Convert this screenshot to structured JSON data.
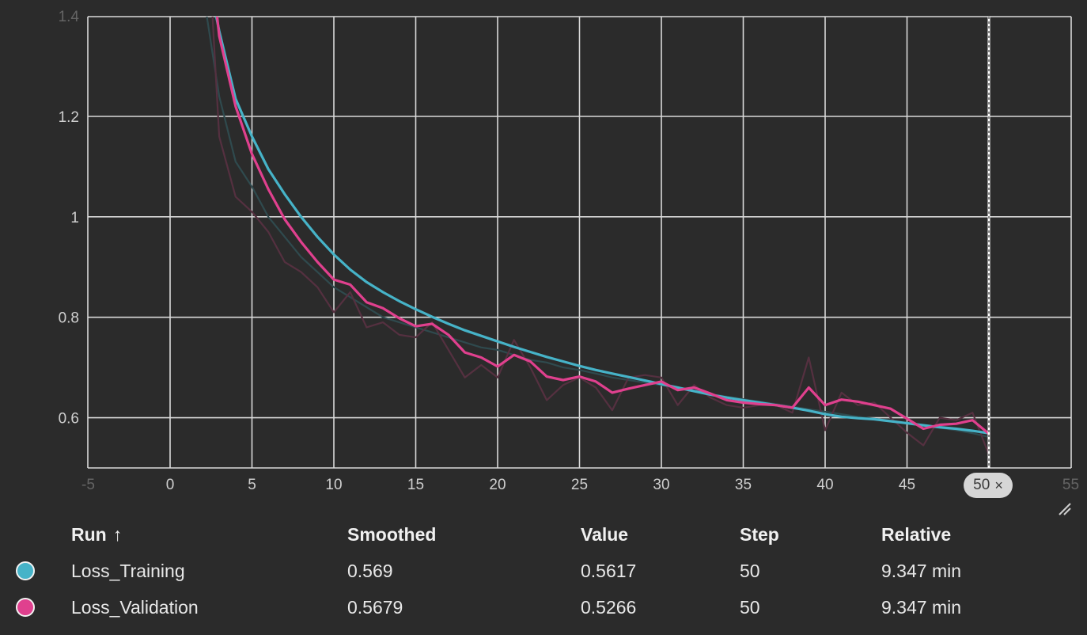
{
  "chart_data": {
    "type": "line",
    "x_ticks": [
      "-5",
      "0",
      "5",
      "10",
      "15",
      "20",
      "25",
      "30",
      "35",
      "40",
      "45",
      "50",
      "55"
    ],
    "y_ticks": [
      "0.6",
      "0.8",
      "1",
      "1.2",
      "1.4"
    ],
    "xlim": [
      -5,
      55
    ],
    "ylim": [
      0.5,
      1.4
    ],
    "grid": true,
    "series": [
      {
        "name": "Loss_Training",
        "color": "#46b3c8",
        "raw_color": "#2f4a4e",
        "raw": [
          [
            2,
            1.45
          ],
          [
            3,
            1.24
          ],
          [
            4,
            1.11
          ],
          [
            5,
            1.06
          ],
          [
            6,
            1.0
          ],
          [
            7,
            0.96
          ],
          [
            8,
            0.92
          ],
          [
            9,
            0.89
          ],
          [
            10,
            0.86
          ],
          [
            11,
            0.84
          ],
          [
            12,
            0.82
          ],
          [
            13,
            0.8
          ],
          [
            14,
            0.79
          ],
          [
            15,
            0.78
          ],
          [
            16,
            0.77
          ],
          [
            17,
            0.76
          ],
          [
            18,
            0.75
          ],
          [
            19,
            0.74
          ],
          [
            20,
            0.735
          ],
          [
            21,
            0.725
          ],
          [
            22,
            0.715
          ],
          [
            23,
            0.71
          ],
          [
            24,
            0.7
          ],
          [
            25,
            0.695
          ],
          [
            26,
            0.688
          ],
          [
            27,
            0.68
          ],
          [
            28,
            0.675
          ],
          [
            29,
            0.67
          ],
          [
            30,
            0.665
          ],
          [
            31,
            0.658
          ],
          [
            32,
            0.653
          ],
          [
            33,
            0.647
          ],
          [
            34,
            0.642
          ],
          [
            35,
            0.637
          ],
          [
            36,
            0.632
          ],
          [
            37,
            0.627
          ],
          [
            38,
            0.622
          ],
          [
            39,
            0.617
          ],
          [
            40,
            0.612
          ],
          [
            41,
            0.607
          ],
          [
            42,
            0.602
          ],
          [
            43,
            0.598
          ],
          [
            44,
            0.594
          ],
          [
            45,
            0.59
          ],
          [
            46,
            0.585
          ],
          [
            47,
            0.58
          ],
          [
            48,
            0.575
          ],
          [
            49,
            0.569
          ],
          [
            50,
            0.5617
          ]
        ],
        "smoothed": [
          [
            2.5,
            1.45
          ],
          [
            3,
            1.37
          ],
          [
            4,
            1.235
          ],
          [
            5,
            1.16
          ],
          [
            6,
            1.095
          ],
          [
            7,
            1.045
          ],
          [
            8,
            1.0
          ],
          [
            9,
            0.96
          ],
          [
            10,
            0.925
          ],
          [
            11,
            0.895
          ],
          [
            12,
            0.87
          ],
          [
            13,
            0.85
          ],
          [
            14,
            0.832
          ],
          [
            15,
            0.816
          ],
          [
            16,
            0.801
          ],
          [
            17,
            0.787
          ],
          [
            18,
            0.774
          ],
          [
            19,
            0.763
          ],
          [
            20,
            0.752
          ],
          [
            21,
            0.741
          ],
          [
            22,
            0.731
          ],
          [
            23,
            0.721
          ],
          [
            24,
            0.712
          ],
          [
            25,
            0.703
          ],
          [
            26,
            0.695
          ],
          [
            27,
            0.688
          ],
          [
            28,
            0.681
          ],
          [
            29,
            0.674
          ],
          [
            30,
            0.667
          ],
          [
            31,
            0.66
          ],
          [
            32,
            0.653
          ],
          [
            33,
            0.646
          ],
          [
            34,
            0.64
          ],
          [
            35,
            0.635
          ],
          [
            36,
            0.63
          ],
          [
            37,
            0.625
          ],
          [
            38,
            0.62
          ],
          [
            39,
            0.614
          ],
          [
            40,
            0.607
          ],
          [
            41,
            0.602
          ],
          [
            42,
            0.599
          ],
          [
            43,
            0.597
          ],
          [
            44,
            0.593
          ],
          [
            45,
            0.589
          ],
          [
            46,
            0.585
          ],
          [
            47,
            0.581
          ],
          [
            48,
            0.578
          ],
          [
            49,
            0.574
          ],
          [
            50,
            0.569
          ]
        ]
      },
      {
        "name": "Loss_Validation",
        "color": "#e0408e",
        "raw_color": "#553040",
        "raw": [
          [
            2.5,
            1.45
          ],
          [
            3,
            1.16
          ],
          [
            4,
            1.04
          ],
          [
            5,
            1.01
          ],
          [
            6,
            0.97
          ],
          [
            7,
            0.91
          ],
          [
            8,
            0.89
          ],
          [
            9,
            0.86
          ],
          [
            10,
            0.81
          ],
          [
            11,
            0.85
          ],
          [
            12,
            0.78
          ],
          [
            13,
            0.79
          ],
          [
            14,
            0.765
          ],
          [
            15,
            0.76
          ],
          [
            16,
            0.79
          ],
          [
            17,
            0.735
          ],
          [
            18,
            0.68
          ],
          [
            19,
            0.705
          ],
          [
            20,
            0.68
          ],
          [
            21,
            0.755
          ],
          [
            22,
            0.7
          ],
          [
            23,
            0.635
          ],
          [
            24,
            0.665
          ],
          [
            25,
            0.68
          ],
          [
            26,
            0.66
          ],
          [
            27,
            0.615
          ],
          [
            28,
            0.68
          ],
          [
            29,
            0.685
          ],
          [
            30,
            0.68
          ],
          [
            31,
            0.625
          ],
          [
            32,
            0.665
          ],
          [
            33,
            0.64
          ],
          [
            34,
            0.625
          ],
          [
            35,
            0.62
          ],
          [
            36,
            0.625
          ],
          [
            37,
            0.625
          ],
          [
            38,
            0.61
          ],
          [
            39,
            0.72
          ],
          [
            40,
            0.575
          ],
          [
            41,
            0.65
          ],
          [
            42,
            0.625
          ],
          [
            43,
            0.63
          ],
          [
            44,
            0.6
          ],
          [
            45,
            0.57
          ],
          [
            46,
            0.545
          ],
          [
            47,
            0.6
          ],
          [
            48,
            0.595
          ],
          [
            49,
            0.61
          ],
          [
            50,
            0.5266
          ]
        ],
        "smoothed": [
          [
            2.7,
            1.45
          ],
          [
            3,
            1.36
          ],
          [
            4,
            1.22
          ],
          [
            5,
            1.125
          ],
          [
            6,
            1.055
          ],
          [
            7,
            0.995
          ],
          [
            8,
            0.95
          ],
          [
            9,
            0.91
          ],
          [
            10,
            0.875
          ],
          [
            11,
            0.865
          ],
          [
            12,
            0.83
          ],
          [
            13,
            0.818
          ],
          [
            14,
            0.798
          ],
          [
            15,
            0.782
          ],
          [
            16,
            0.787
          ],
          [
            17,
            0.765
          ],
          [
            18,
            0.73
          ],
          [
            19,
            0.72
          ],
          [
            20,
            0.702
          ],
          [
            21,
            0.725
          ],
          [
            22,
            0.712
          ],
          [
            23,
            0.682
          ],
          [
            24,
            0.675
          ],
          [
            25,
            0.682
          ],
          [
            26,
            0.672
          ],
          [
            27,
            0.65
          ],
          [
            28,
            0.658
          ],
          [
            29,
            0.665
          ],
          [
            30,
            0.672
          ],
          [
            31,
            0.655
          ],
          [
            32,
            0.66
          ],
          [
            33,
            0.648
          ],
          [
            34,
            0.635
          ],
          [
            35,
            0.63
          ],
          [
            36,
            0.627
          ],
          [
            37,
            0.625
          ],
          [
            38,
            0.62
          ],
          [
            39,
            0.66
          ],
          [
            40,
            0.625
          ],
          [
            41,
            0.636
          ],
          [
            42,
            0.632
          ],
          [
            43,
            0.625
          ],
          [
            44,
            0.618
          ],
          [
            45,
            0.598
          ],
          [
            46,
            0.578
          ],
          [
            47,
            0.586
          ],
          [
            48,
            0.588
          ],
          [
            49,
            0.595
          ],
          [
            50,
            0.5679
          ]
        ]
      }
    ],
    "hover_step": 50,
    "hover_step_label": "50",
    "hover_close": "×"
  },
  "table": {
    "headers": {
      "run": "Run",
      "run_sort": "↑",
      "smoothed": "Smoothed",
      "value": "Value",
      "step": "Step",
      "relative": "Relative"
    },
    "rows": [
      {
        "run": "Loss_Training",
        "smoothed": "0.569",
        "value": "0.5617",
        "step": "50",
        "relative": "9.347 min",
        "color": "#46b3c8"
      },
      {
        "run": "Loss_Validation",
        "smoothed": "0.5679",
        "value": "0.5266",
        "step": "50",
        "relative": "9.347 min",
        "color": "#e0408e"
      }
    ]
  },
  "icons": {
    "resize": "resize-icon"
  }
}
